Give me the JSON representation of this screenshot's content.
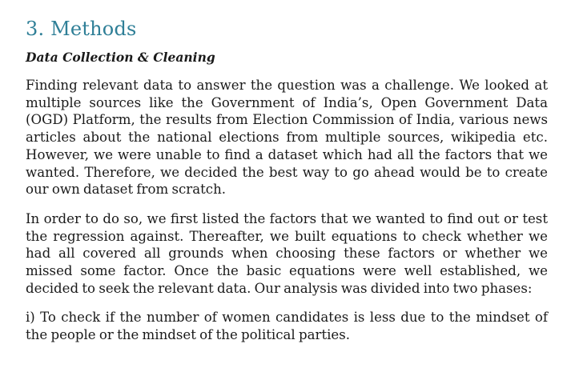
{
  "section": {
    "title": "3. Methods"
  },
  "subsection": {
    "title": "Data Collection & Cleaning"
  },
  "paragraphs": [
    "Finding relevant data to answer the question was a challenge. We looked at multiple sources like the Government of India’s, Open Government Data (OGD) Platform, the results from Election Commission of India, various news articles about the national elections from multiple sources, wikipedia etc. However, we were unable to find a dataset which had all the factors that we wanted. Therefore, we decided the best way to go ahead would be to create our own dataset from scratch.",
    "In order to do so, we first listed the factors that we wanted to find out or test the regression against. Thereafter, we built equations to check whether we had all covered all grounds when choosing these factors or whether we missed some factor. Once the basic equations were well established, we decided to seek the relevant data. Our analysis was divided into two phases:",
    "i) To check if the number of women candidates is less due to the mindset of the people or the mindset of the political parties."
  ],
  "colors": {
    "heading": "#2f7f97",
    "text": "#1a1a1a",
    "background": "#ffffff"
  }
}
